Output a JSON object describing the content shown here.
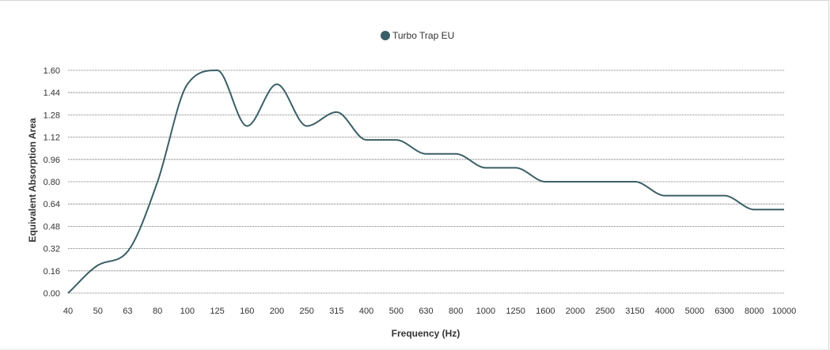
{
  "chart_data": {
    "type": "line",
    "categories": [
      "40",
      "50",
      "63",
      "80",
      "100",
      "125",
      "160",
      "200",
      "250",
      "315",
      "400",
      "500",
      "630",
      "800",
      "1000",
      "1250",
      "1600",
      "2000",
      "2500",
      "3150",
      "4000",
      "5000",
      "6300",
      "8000",
      "10000"
    ],
    "series": [
      {
        "name": "Turbo Trap EU",
        "color": "#3b5f66",
        "values": [
          0.0,
          0.2,
          0.3,
          0.8,
          1.5,
          1.6,
          1.2,
          1.5,
          1.2,
          1.3,
          1.1,
          1.1,
          1.0,
          1.0,
          0.9,
          0.9,
          0.8,
          0.8,
          0.8,
          0.8,
          0.7,
          0.7,
          0.7,
          0.6,
          0.6
        ]
      }
    ],
    "xlabel": "Frequency (Hz)",
    "ylabel": "Equivalent Absorption Area",
    "ylim": [
      0,
      1.6
    ],
    "yticks": [
      "0.00",
      "0.16",
      "0.32",
      "0.48",
      "0.64",
      "0.80",
      "0.96",
      "1.12",
      "1.28",
      "1.44",
      "1.60"
    ],
    "grid": true,
    "legend_position": "top-center"
  }
}
